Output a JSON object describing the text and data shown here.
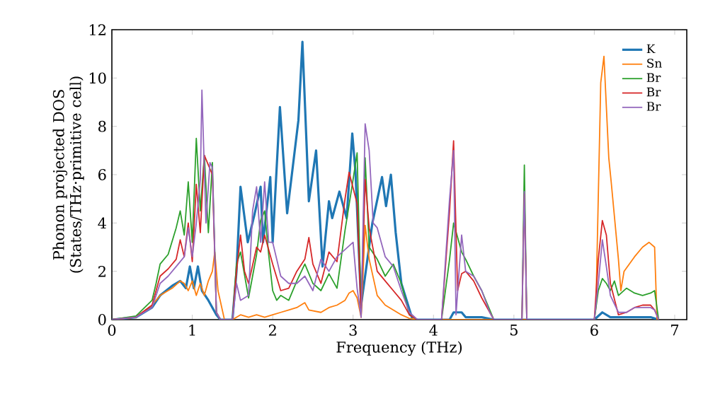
{
  "chart_data": {
    "type": "line",
    "xlabel": "Frequency (THz)",
    "ylabel": "Phonon projected DOS (States/THz·primitive cell)",
    "xlim": [
      0,
      7.15
    ],
    "ylim": [
      0,
      12
    ],
    "xticks": [
      0,
      1,
      2,
      3,
      4,
      5,
      6,
      7
    ],
    "yticks": [
      0,
      2,
      4,
      6,
      8,
      10,
      12
    ],
    "grid": false,
    "legend": "top right",
    "marker": "none",
    "line_style": "solid",
    "series": [
      {
        "name": "K",
        "color": "#1f77b4",
        "x": [
          0,
          0.3,
          0.5,
          0.6,
          0.75,
          0.85,
          0.92,
          0.97,
          1.02,
          1.07,
          1.12,
          1.2,
          1.3,
          1.35,
          1.5,
          1.55,
          1.6,
          1.69,
          1.77,
          1.85,
          1.88,
          1.97,
          2.0,
          2.09,
          2.18,
          2.32,
          2.37,
          2.45,
          2.54,
          2.62,
          2.7,
          2.74,
          2.83,
          2.92,
          2.99,
          3.03,
          3.1,
          3.24,
          3.36,
          3.41,
          3.47,
          3.53,
          3.6,
          3.74,
          3.9,
          4.2,
          4.25,
          4.35,
          4.4,
          4.6,
          4.75,
          6.0,
          6.1,
          6.2,
          6.4,
          6.7,
          6.8
        ],
        "values": [
          0,
          0.1,
          0.5,
          1.0,
          1.4,
          1.6,
          1.3,
          2.2,
          1.3,
          2.2,
          1.2,
          0.8,
          0.2,
          0,
          0,
          2.0,
          5.5,
          3.2,
          4.3,
          5.5,
          3.2,
          5.9,
          3.2,
          8.8,
          4.4,
          8.25,
          11.5,
          4.9,
          7.0,
          2.2,
          4.9,
          4.2,
          5.3,
          4.2,
          7.7,
          6.1,
          0.6,
          4.0,
          5.9,
          4.7,
          6.0,
          3.6,
          1.5,
          0,
          0,
          0,
          0.3,
          0.3,
          0.1,
          0.1,
          0,
          0,
          0.3,
          0.1,
          0.1,
          0.1,
          0
        ]
      },
      {
        "name": "Sn",
        "color": "#ff7f0e",
        "x": [
          0,
          0.3,
          0.5,
          0.6,
          0.75,
          0.85,
          0.9,
          0.95,
          1.0,
          1.05,
          1.1,
          1.15,
          1.2,
          1.25,
          1.28,
          1.32,
          1.4,
          1.5,
          1.6,
          1.7,
          1.8,
          1.9,
          2.0,
          2.1,
          2.2,
          2.3,
          2.4,
          2.45,
          2.6,
          2.7,
          2.8,
          2.9,
          2.95,
          3.0,
          3.05,
          3.1,
          3.15,
          3.2,
          3.3,
          3.4,
          3.5,
          3.6,
          3.7,
          3.8,
          6.0,
          6.02,
          6.08,
          6.12,
          6.18,
          6.21,
          6.3,
          6.33,
          6.37,
          6.5,
          6.6,
          6.68,
          6.75,
          6.78
        ],
        "values": [
          0,
          0.1,
          0.6,
          1.0,
          1.3,
          1.6,
          1.5,
          1.2,
          1.6,
          1.0,
          1.5,
          1.0,
          1.6,
          2.0,
          2.8,
          1.2,
          0,
          0,
          0.2,
          0.1,
          0.2,
          0.1,
          0.2,
          0.3,
          0.4,
          0.5,
          0.7,
          0.4,
          0.3,
          0.5,
          0.6,
          0.8,
          1.1,
          1.2,
          0.9,
          0.1,
          3.9,
          2.5,
          1.0,
          0.6,
          0.4,
          0.2,
          0.05,
          0,
          0,
          0.5,
          9.8,
          10.9,
          6.7,
          5.7,
          2.5,
          1.2,
          2.0,
          2.6,
          3.0,
          3.2,
          3.0,
          0
        ]
      },
      {
        "name": "Br",
        "color": "#2ca02c",
        "x": [
          0,
          0.3,
          0.5,
          0.55,
          0.6,
          0.7,
          0.8,
          0.85,
          0.9,
          0.95,
          1.0,
          1.05,
          1.1,
          1.15,
          1.2,
          1.25,
          1.3,
          1.35,
          1.5,
          1.55,
          1.6,
          1.7,
          1.8,
          1.85,
          1.9,
          1.95,
          2.0,
          2.05,
          2.1,
          2.2,
          2.3,
          2.4,
          2.5,
          2.6,
          2.7,
          2.8,
          2.9,
          3.0,
          3.05,
          3.1,
          3.15,
          3.2,
          3.3,
          3.4,
          3.5,
          3.6,
          3.7,
          3.8,
          4.1,
          4.2,
          4.25,
          4.3,
          4.35,
          4.4,
          4.5,
          4.6,
          4.7,
          4.75,
          5.1,
          5.13,
          5.16,
          6.0,
          6.05,
          6.1,
          6.15,
          6.2,
          6.25,
          6.3,
          6.4,
          6.5,
          6.6,
          6.7,
          6.75,
          6.8
        ],
        "values": [
          0,
          0.15,
          0.8,
          1.5,
          2.3,
          2.7,
          3.8,
          4.5,
          3.5,
          5.7,
          3.2,
          7.5,
          4.5,
          6.8,
          3.6,
          6.5,
          0.3,
          0,
          0,
          2.3,
          2.8,
          0.9,
          2.7,
          4.1,
          4.5,
          2.7,
          1.2,
          0.8,
          1.0,
          0.8,
          1.6,
          2.3,
          1.5,
          1.2,
          1.9,
          1.3,
          3.7,
          5.8,
          6.9,
          0.2,
          6.7,
          3.0,
          2.5,
          1.8,
          2.3,
          1.5,
          0.2,
          0,
          0,
          2.5,
          4.0,
          3.4,
          2.8,
          2.5,
          1.8,
          1.2,
          0.4,
          0,
          0,
          6.4,
          0,
          0,
          1.2,
          1.7,
          1.5,
          1.2,
          1.6,
          1.0,
          1.3,
          1.1,
          1.0,
          1.1,
          1.2,
          0
        ]
      },
      {
        "name": "Br",
        "color": "#d62728",
        "x": [
          0,
          0.3,
          0.5,
          0.6,
          0.7,
          0.8,
          0.85,
          0.9,
          0.95,
          1.0,
          1.05,
          1.1,
          1.15,
          1.2,
          1.25,
          1.3,
          1.35,
          1.5,
          1.55,
          1.6,
          1.65,
          1.7,
          1.8,
          1.85,
          1.9,
          2.0,
          2.1,
          2.2,
          2.3,
          2.4,
          2.45,
          2.5,
          2.6,
          2.7,
          2.8,
          2.9,
          2.95,
          3.05,
          3.1,
          3.15,
          3.2,
          3.3,
          3.4,
          3.5,
          3.6,
          3.7,
          3.8,
          4.1,
          4.2,
          4.25,
          4.3,
          4.35,
          4.4,
          4.5,
          4.6,
          4.7,
          4.75,
          5.1,
          5.13,
          5.16,
          6.0,
          6.05,
          6.1,
          6.15,
          6.2,
          6.3,
          6.4,
          6.5,
          6.6,
          6.7,
          6.75,
          6.8
        ],
        "values": [
          0,
          0.1,
          0.6,
          1.8,
          2.1,
          2.5,
          3.3,
          2.6,
          4.0,
          2.4,
          5.6,
          3.6,
          6.8,
          6.4,
          6.0,
          0.3,
          0,
          0,
          2.0,
          3.5,
          2.0,
          1.5,
          3.0,
          2.8,
          3.5,
          2.3,
          1.2,
          1.3,
          2.0,
          2.5,
          3.4,
          2.3,
          1.5,
          2.8,
          2.4,
          5.0,
          6.1,
          4.8,
          0.1,
          5.8,
          3.8,
          2.0,
          1.6,
          1.2,
          0.8,
          0.2,
          0,
          0,
          4.5,
          7.4,
          1.2,
          1.9,
          2.0,
          1.6,
          0.9,
          0.3,
          0,
          0,
          5.2,
          0,
          0,
          2.5,
          4.1,
          3.5,
          1.5,
          0.2,
          0.3,
          0.5,
          0.6,
          0.6,
          0.4,
          0
        ]
      },
      {
        "name": "Br",
        "color": "#9467bd",
        "x": [
          0,
          0.3,
          0.5,
          0.6,
          0.7,
          0.8,
          0.9,
          0.95,
          1.0,
          1.05,
          1.1,
          1.12,
          1.17,
          1.22,
          1.25,
          1.3,
          1.35,
          1.5,
          1.55,
          1.6,
          1.7,
          1.75,
          1.8,
          1.85,
          1.9,
          1.95,
          2.0,
          2.1,
          2.2,
          2.3,
          2.4,
          2.5,
          2.6,
          2.7,
          2.8,
          2.9,
          3.0,
          3.05,
          3.1,
          3.15,
          3.2,
          3.25,
          3.3,
          3.4,
          3.5,
          3.6,
          3.7,
          3.8,
          4.1,
          4.2,
          4.25,
          4.28,
          4.35,
          4.4,
          4.5,
          4.6,
          4.7,
          4.75,
          5.1,
          5.13,
          5.16,
          6.0,
          6.05,
          6.1,
          6.15,
          6.2,
          6.3,
          6.4,
          6.5,
          6.6,
          6.7,
          6.75,
          6.8
        ],
        "values": [
          0,
          0.1,
          0.5,
          1.5,
          1.8,
          2.2,
          2.6,
          3.8,
          2.6,
          4.0,
          5.8,
          9.5,
          4.0,
          6.5,
          6.3,
          0.3,
          0,
          0,
          1.5,
          0.8,
          1.0,
          4.5,
          5.5,
          3.2,
          5.7,
          3.2,
          3.2,
          1.8,
          1.5,
          1.5,
          1.8,
          1.2,
          2.5,
          2.0,
          2.6,
          2.9,
          3.2,
          1.3,
          0.1,
          8.1,
          7.0,
          4.0,
          3.8,
          2.6,
          2.2,
          1.2,
          0.3,
          0,
          0,
          5.0,
          7.0,
          0.2,
          3.5,
          2.0,
          1.8,
          1.2,
          0.3,
          0,
          0,
          5.3,
          0,
          0,
          1.5,
          3.3,
          2.2,
          1.0,
          0.3,
          0.3,
          0.5,
          0.5,
          0.5,
          0.4,
          0
        ]
      }
    ]
  }
}
